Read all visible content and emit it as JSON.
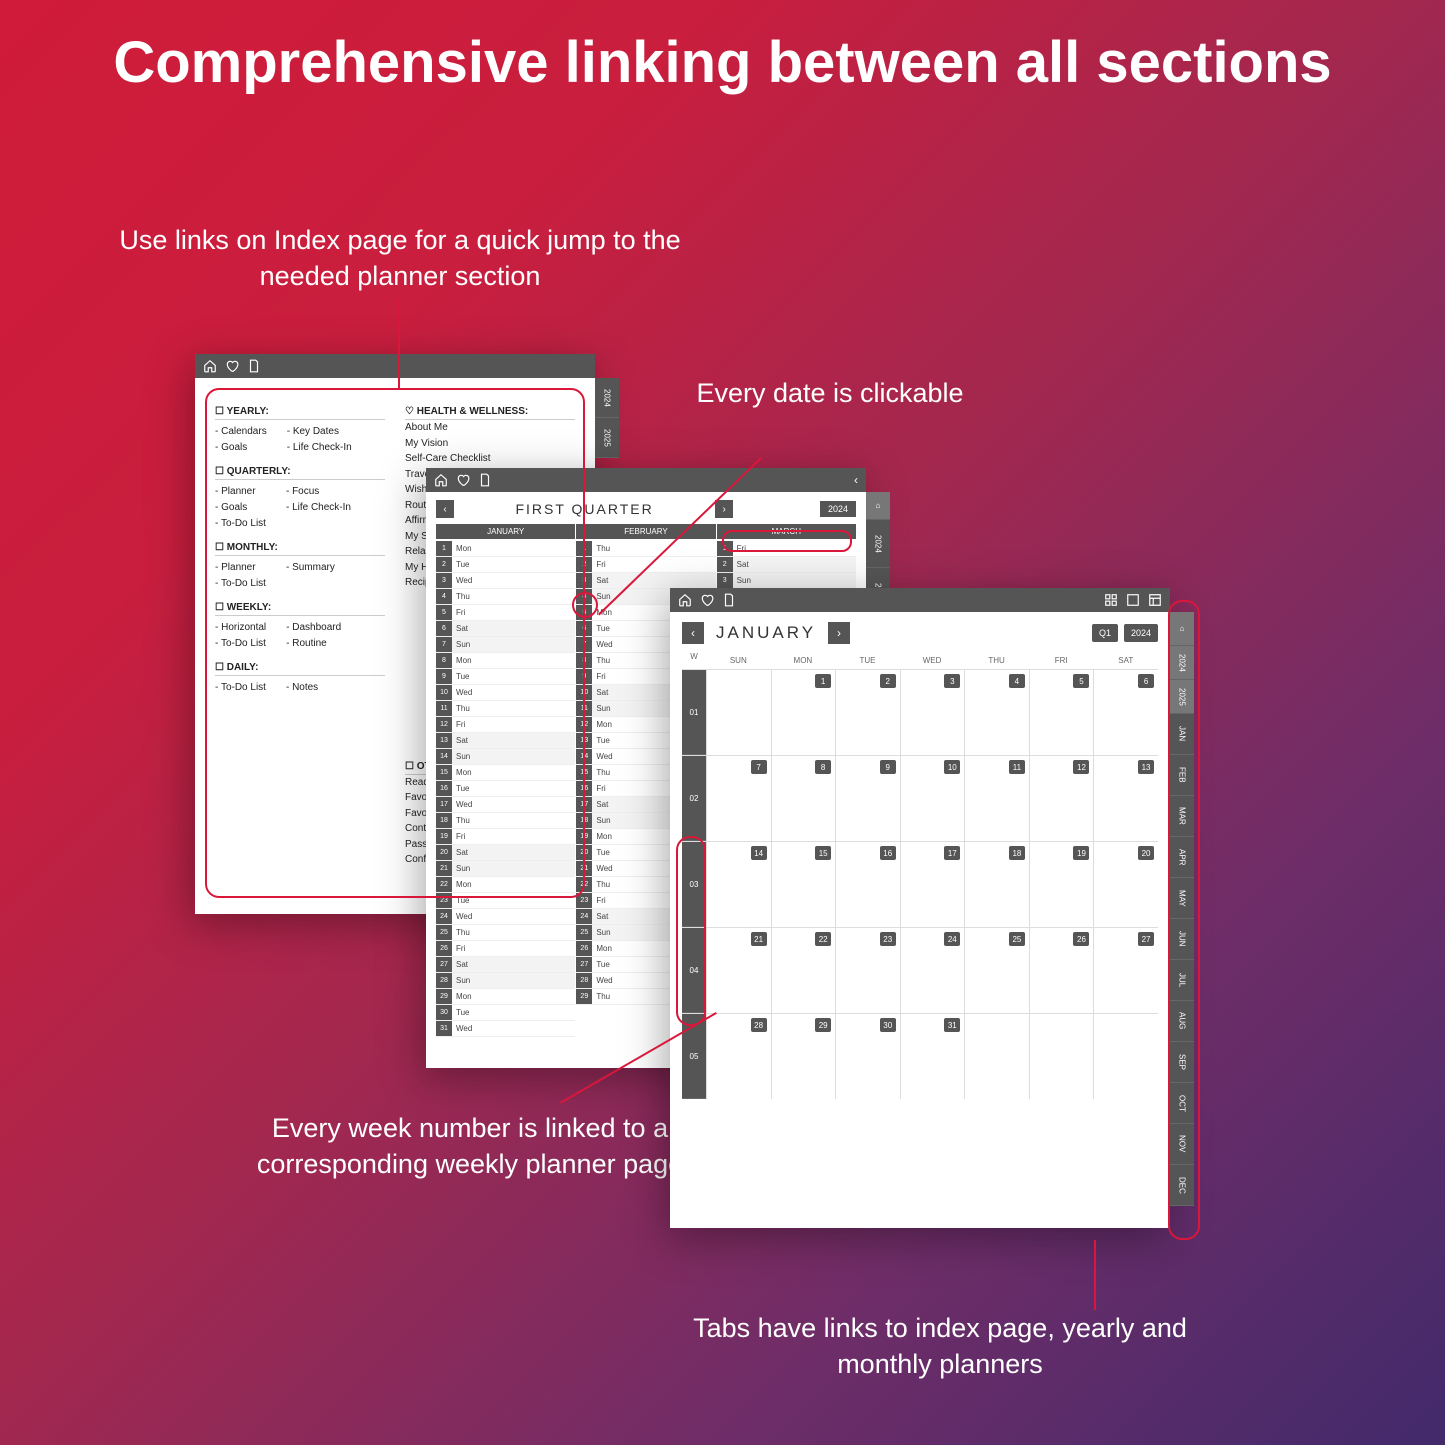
{
  "title": "Comprehensive linking between all sections",
  "callouts": {
    "index": "Use links on Index page for a quick jump to the needed planner section",
    "date": "Every date is clickable",
    "week": "Every week number is linked to a corresponding weekly planner page",
    "tabs": "Tabs have links to index page, yearly and monthly planners"
  },
  "colors": {
    "toolbar": "#555555",
    "accent": "#d9173a",
    "text": "#ffffff"
  },
  "index_page": {
    "sidetabs": [
      "2024",
      "2025"
    ],
    "left": [
      {
        "head": "☐ YEARLY:",
        "cols": [
          [
            "Calendars",
            "Goals"
          ],
          [
            "Key Dates",
            "Life Check-In"
          ]
        ]
      },
      {
        "head": "☐ QUARTERLY:",
        "cols": [
          [
            "Planner",
            "Goals",
            "To-Do List"
          ],
          [
            "Focus",
            "Life Check-In"
          ]
        ]
      },
      {
        "head": "☐ MONTHLY:",
        "cols": [
          [
            "Planner",
            "To-Do List"
          ],
          [
            "Summary"
          ]
        ]
      },
      {
        "head": "☐ WEEKLY:",
        "cols": [
          [
            "Horizontal",
            "To-Do List"
          ],
          [
            "Dashboard",
            "Routine"
          ]
        ]
      },
      {
        "head": "☐ DAILY:",
        "cols": [
          [
            "To-Do List"
          ],
          [
            "Notes"
          ]
        ]
      }
    ],
    "right_head": "♡ HEALTH & WELLNESS:",
    "right_items": [
      "About Me",
      "My Vision",
      "Self-Care Checklist",
      "Travel Itinerary",
      "Wishlist",
      "Routines Tr",
      "Affirmation",
      "My SWOT",
      "Relaxation",
      "My Happy P",
      "Recipes"
    ],
    "others_head": "☐ OTHERS",
    "others_items": [
      "Reading Li",
      "Favorite Au",
      "Favorite Qu",
      "Contacts",
      "Password Li",
      "Conference"
    ]
  },
  "quarter_page": {
    "title": "FIRST QUARTER",
    "year": "2024",
    "months": [
      "JANUARY",
      "FEBRUARY",
      "MARCH"
    ],
    "sidetabs": [
      "⌂",
      "2024",
      "2025"
    ],
    "rows_per_month": 31,
    "days": [
      "Mon",
      "Tue",
      "Wed",
      "Thu",
      "Fri",
      "Sat",
      "Sun"
    ],
    "month_lengths": [
      31,
      29,
      31
    ],
    "month_start_day": [
      0,
      3,
      4
    ]
  },
  "month_page": {
    "title": "JANUARY",
    "q_badge": "Q1",
    "year": "2024",
    "dow": [
      "SUN",
      "MON",
      "TUE",
      "WED",
      "THU",
      "FRI",
      "SAT"
    ],
    "sidetabs_top": [
      "⌂",
      "2024",
      "2025"
    ],
    "sidetabs_months": [
      "JAN",
      "FEB",
      "MAR",
      "APR",
      "MAY",
      "JUN",
      "JUL",
      "AUG",
      "SEP",
      "OCT",
      "NOV",
      "DEC"
    ],
    "weeks": [
      {
        "num": "01",
        "days": [
          null,
          1,
          2,
          3,
          4,
          5,
          6
        ]
      },
      {
        "num": "02",
        "days": [
          7,
          8,
          9,
          10,
          11,
          12,
          13
        ]
      },
      {
        "num": "03",
        "days": [
          14,
          15,
          16,
          17,
          18,
          19,
          20
        ]
      },
      {
        "num": "04",
        "days": [
          21,
          22,
          23,
          24,
          25,
          26,
          27
        ]
      },
      {
        "num": "05",
        "days": [
          28,
          29,
          30,
          31,
          null,
          null,
          null
        ]
      }
    ]
  }
}
